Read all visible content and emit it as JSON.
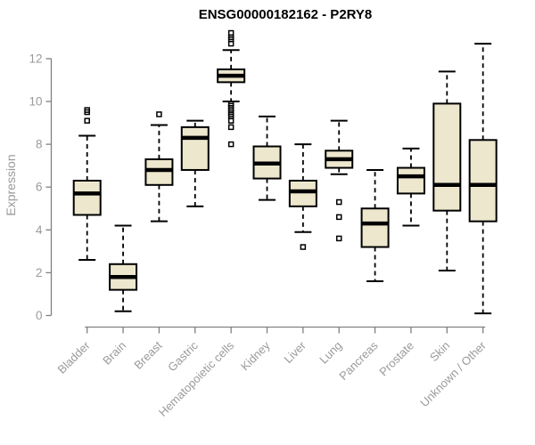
{
  "title": "ENSG00000182162 - P2RY8",
  "chart_data": {
    "type": "boxplot",
    "title": "ENSG00000182162 - P2RY8",
    "xlabel": "",
    "ylabel": "Expression",
    "ylim": [
      0,
      13.4
    ],
    "yticks": [
      0,
      2,
      4,
      6,
      8,
      10,
      12
    ],
    "grid": false,
    "legend": "none",
    "colors": {
      "box_fill": "#EDE7CE",
      "box_stroke": "#000000",
      "median": "#000000",
      "axis_line": "#808080",
      "tick_text": "#9a9a9a",
      "title_text": "#000000",
      "background": "#ffffff"
    },
    "categories": [
      "Bladder",
      "Brain",
      "Breast",
      "Gastric",
      "Hematopoietic cells",
      "Kidney",
      "Liver",
      "Lung",
      "Pancreas",
      "Prostate",
      "Skin",
      "Unknown / Other"
    ],
    "series": [
      {
        "category": "Bladder",
        "whisker_low": 2.6,
        "q1": 4.7,
        "median": 5.7,
        "q3": 6.3,
        "whisker_high": 8.4,
        "outliers": [
          9.1,
          9.5,
          9.6
        ]
      },
      {
        "category": "Brain",
        "whisker_low": 0.2,
        "q1": 1.2,
        "median": 1.8,
        "q3": 2.4,
        "whisker_high": 4.2,
        "outliers": []
      },
      {
        "category": "Breast",
        "whisker_low": 4.4,
        "q1": 6.1,
        "median": 6.8,
        "q3": 7.3,
        "whisker_high": 8.9,
        "outliers": [
          9.4
        ]
      },
      {
        "category": "Gastric",
        "whisker_low": 5.1,
        "q1": 6.8,
        "median": 8.3,
        "q3": 8.8,
        "whisker_high": 9.1,
        "outliers": []
      },
      {
        "category": "Hematopoietic cells",
        "whisker_low": 10.0,
        "q1": 10.9,
        "median": 11.2,
        "q3": 11.5,
        "whisker_high": 12.4,
        "outliers": [
          13.2,
          13.0,
          12.9,
          12.7,
          9.9,
          9.8,
          9.7,
          9.6,
          9.5,
          9.4,
          9.3,
          9.1,
          8.8,
          8.0
        ]
      },
      {
        "category": "Kidney",
        "whisker_low": 5.4,
        "q1": 6.4,
        "median": 7.1,
        "q3": 7.9,
        "whisker_high": 9.3,
        "outliers": []
      },
      {
        "category": "Liver",
        "whisker_low": 3.9,
        "q1": 5.1,
        "median": 5.8,
        "q3": 6.3,
        "whisker_high": 8.0,
        "outliers": [
          3.2
        ]
      },
      {
        "category": "Lung",
        "whisker_low": 6.6,
        "q1": 6.9,
        "median": 7.3,
        "q3": 7.7,
        "whisker_high": 9.1,
        "outliers": [
          5.3,
          4.6,
          3.6
        ]
      },
      {
        "category": "Pancreas",
        "whisker_low": 1.6,
        "q1": 3.2,
        "median": 4.3,
        "q3": 5.0,
        "whisker_high": 6.8,
        "outliers": []
      },
      {
        "category": "Prostate",
        "whisker_low": 4.2,
        "q1": 5.7,
        "median": 6.5,
        "q3": 6.9,
        "whisker_high": 7.8,
        "outliers": []
      },
      {
        "category": "Skin",
        "whisker_low": 2.1,
        "q1": 4.9,
        "median": 6.1,
        "q3": 9.9,
        "whisker_high": 11.4,
        "outliers": []
      },
      {
        "category": "Unknown / Other",
        "whisker_low": 0.1,
        "q1": 4.4,
        "median": 6.1,
        "q3": 8.2,
        "whisker_high": 12.7,
        "outliers": []
      }
    ]
  }
}
